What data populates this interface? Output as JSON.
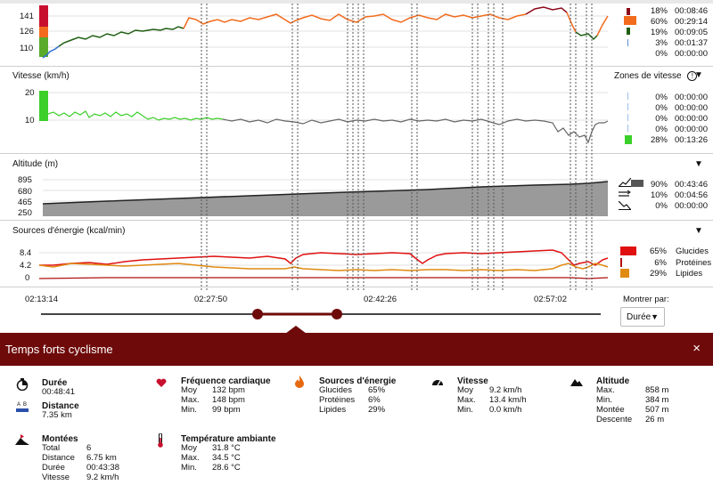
{
  "heart_zones": {
    "axis_ticks": [
      "141",
      "126",
      "110"
    ],
    "rows": [
      {
        "pct": "18%",
        "time": "00:08:46",
        "color": "#8b0a1a"
      },
      {
        "pct": "60%",
        "time": "00:29:14",
        "color": "#f26b1d"
      },
      {
        "pct": "19%",
        "time": "00:09:05",
        "color": "#1f5e12"
      },
      {
        "pct": "3%",
        "time": "00:01:37",
        "color": "#5b8fd6"
      },
      {
        "pct": "0%",
        "time": "00:00:00",
        "color": "#cccccc"
      }
    ]
  },
  "speed": {
    "title": "Vitesse (km/h)",
    "axis_ticks": [
      "20",
      "10"
    ],
    "zones_title": "Zones de vitesse",
    "rows": [
      {
        "pct": "0%",
        "time": "00:00:00"
      },
      {
        "pct": "0%",
        "time": "00:00:00"
      },
      {
        "pct": "0%",
        "time": "00:00:00"
      },
      {
        "pct": "0%",
        "time": "00:00:00"
      },
      {
        "pct": "28%",
        "time": "00:13:26"
      }
    ]
  },
  "altitude": {
    "title": "Altitude (m)",
    "axis_ticks": [
      "895",
      "680",
      "465",
      "250"
    ],
    "rows": [
      {
        "pct": "90%",
        "time": "00:43:46",
        "icon": "climb-icon"
      },
      {
        "pct": "10%",
        "time": "00:04:56",
        "icon": "flat-icon"
      },
      {
        "pct": "0%",
        "time": "00:00:00",
        "icon": "descent-icon"
      }
    ]
  },
  "energy": {
    "title": "Sources d'énergie (kcal/min)",
    "axis_ticks": [
      "8.4",
      "4.2",
      "0"
    ],
    "rows": [
      {
        "pct": "65%",
        "label": "Glucides",
        "color": "#e01010"
      },
      {
        "pct": "6%",
        "label": "Protéines",
        "color": "#b01010"
      },
      {
        "pct": "29%",
        "label": "Lipides",
        "color": "#e08a10"
      }
    ]
  },
  "timeline": {
    "labels": [
      "02:13:14",
      "02:27:50",
      "02:42:26",
      "02:57:02"
    ],
    "show_by_label": "Montrer par:",
    "show_by_value": "Durée"
  },
  "modal": {
    "title": "Temps forts cyclisme",
    "close": "×",
    "duration": {
      "title": "Durée",
      "value": "00:48:41"
    },
    "distance": {
      "title": "Distance",
      "value": "7.35 km"
    },
    "climbs": {
      "title": "Montées",
      "rows": [
        {
          "label": "Total",
          "value": "6"
        },
        {
          "label": "Distance",
          "value": "6.75 km"
        },
        {
          "label": "Durée",
          "value": "00:43:38"
        },
        {
          "label": "Vitesse",
          "value": "9.2 km/h"
        }
      ]
    },
    "heart": {
      "title": "Fréquence cardiaque",
      "rows": [
        {
          "label": "Moy",
          "value": "132 bpm"
        },
        {
          "label": "Max.",
          "value": "148 bpm"
        },
        {
          "label": "Min.",
          "value": "99 bpm"
        }
      ]
    },
    "temperature": {
      "title": "Température ambiante",
      "rows": [
        {
          "label": "Moy",
          "value": "31.8 °C"
        },
        {
          "label": "Max.",
          "value": "34.5 °C"
        },
        {
          "label": "Min.",
          "value": "28.6 °C"
        }
      ]
    },
    "energy": {
      "title": "Sources d'énergie",
      "rows": [
        {
          "label": "Glucides",
          "value": "65%"
        },
        {
          "label": "Protéines",
          "value": "6%"
        },
        {
          "label": "Lipides",
          "value": "29%"
        }
      ]
    },
    "speed": {
      "title": "Vitesse",
      "rows": [
        {
          "label": "Moy",
          "value": "9.2 km/h"
        },
        {
          "label": "Max.",
          "value": "13.4 km/h"
        },
        {
          "label": "Min.",
          "value": "0.0 km/h"
        }
      ]
    },
    "altitude": {
      "title": "Altitude",
      "rows": [
        {
          "label": "Max.",
          "value": "858 m"
        },
        {
          "label": "Min.",
          "value": "384 m"
        },
        {
          "label": "Montée",
          "value": "507 m"
        },
        {
          "label": "Descente",
          "value": "26 m"
        }
      ]
    }
  }
}
